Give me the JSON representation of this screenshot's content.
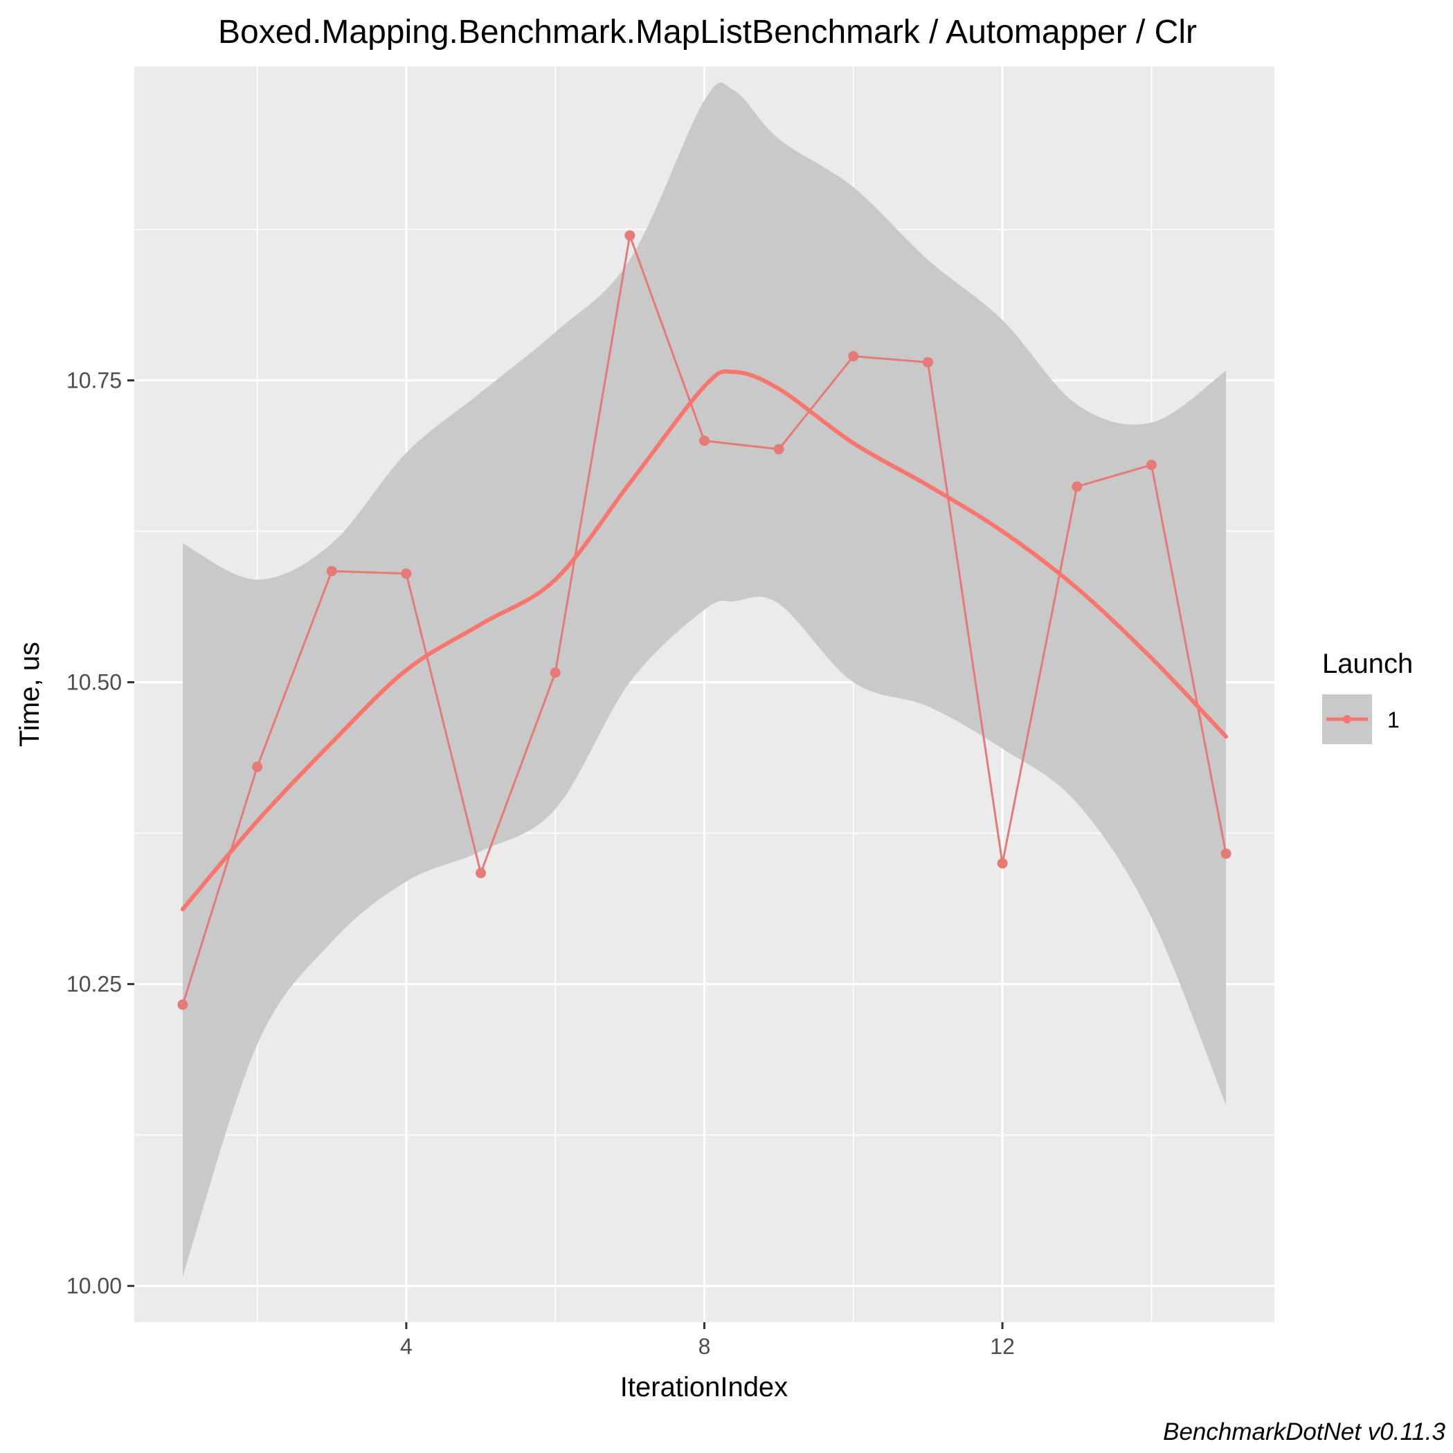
{
  "chart_data": {
    "type": "line",
    "title": "Boxed.Mapping.Benchmark.MapListBenchmark / Automapper / Clr",
    "xlabel": "IterationIndex",
    "ylabel": "Time, us",
    "caption": "BenchmarkDotNet v0.11.3",
    "xlim": [
      0.35,
      15.65
    ],
    "ylim": [
      9.97,
      11.01
    ],
    "x_ticks": [
      4,
      8,
      12
    ],
    "x_tick_labels": [
      "4",
      "8",
      "12"
    ],
    "x_minor": [
      2,
      6,
      10,
      14
    ],
    "y_ticks": [
      10.0,
      10.25,
      10.5,
      10.75
    ],
    "y_tick_labels": [
      "10.00",
      "10.25",
      "10.50",
      "10.75"
    ],
    "y_minor": [
      10.125,
      10.375,
      10.625,
      10.875
    ],
    "grid": true,
    "legend": {
      "title": "Launch",
      "position": "right",
      "entries": [
        "1"
      ]
    },
    "colors": {
      "series": "#F8766D",
      "point": "#E57A77",
      "band": "#c9c9c9",
      "panel": "#EBEBEB",
      "grid": "#FFFFFF"
    },
    "series": [
      {
        "name": "1",
        "x": [
          1,
          2,
          3,
          4,
          5,
          6,
          7,
          8,
          9,
          10,
          11,
          12,
          13,
          14,
          15
        ],
        "y": [
          10.233,
          10.43,
          10.592,
          10.59,
          10.342,
          10.508,
          10.87,
          10.7,
          10.693,
          10.77,
          10.765,
          10.35,
          10.662,
          10.68,
          10.358
        ]
      }
    ],
    "smooth": {
      "x": [
        1,
        2,
        3,
        4,
        5,
        6,
        7,
        8,
        8.4,
        9,
        10,
        11,
        12,
        13,
        14,
        15
      ],
      "y": [
        10.312,
        10.385,
        10.45,
        10.51,
        10.548,
        10.585,
        10.665,
        10.745,
        10.757,
        10.743,
        10.698,
        10.663,
        10.625,
        10.578,
        10.52,
        10.455
      ],
      "lower": [
        10.008,
        10.2,
        10.285,
        10.335,
        10.36,
        10.395,
        10.5,
        10.56,
        10.567,
        10.565,
        10.5,
        10.48,
        10.445,
        10.4,
        10.305,
        10.15
      ],
      "upper": [
        10.615,
        10.585,
        10.615,
        10.69,
        10.74,
        10.79,
        10.85,
        10.982,
        10.99,
        10.95,
        10.91,
        10.85,
        10.8,
        10.73,
        10.715,
        10.758
      ]
    }
  }
}
